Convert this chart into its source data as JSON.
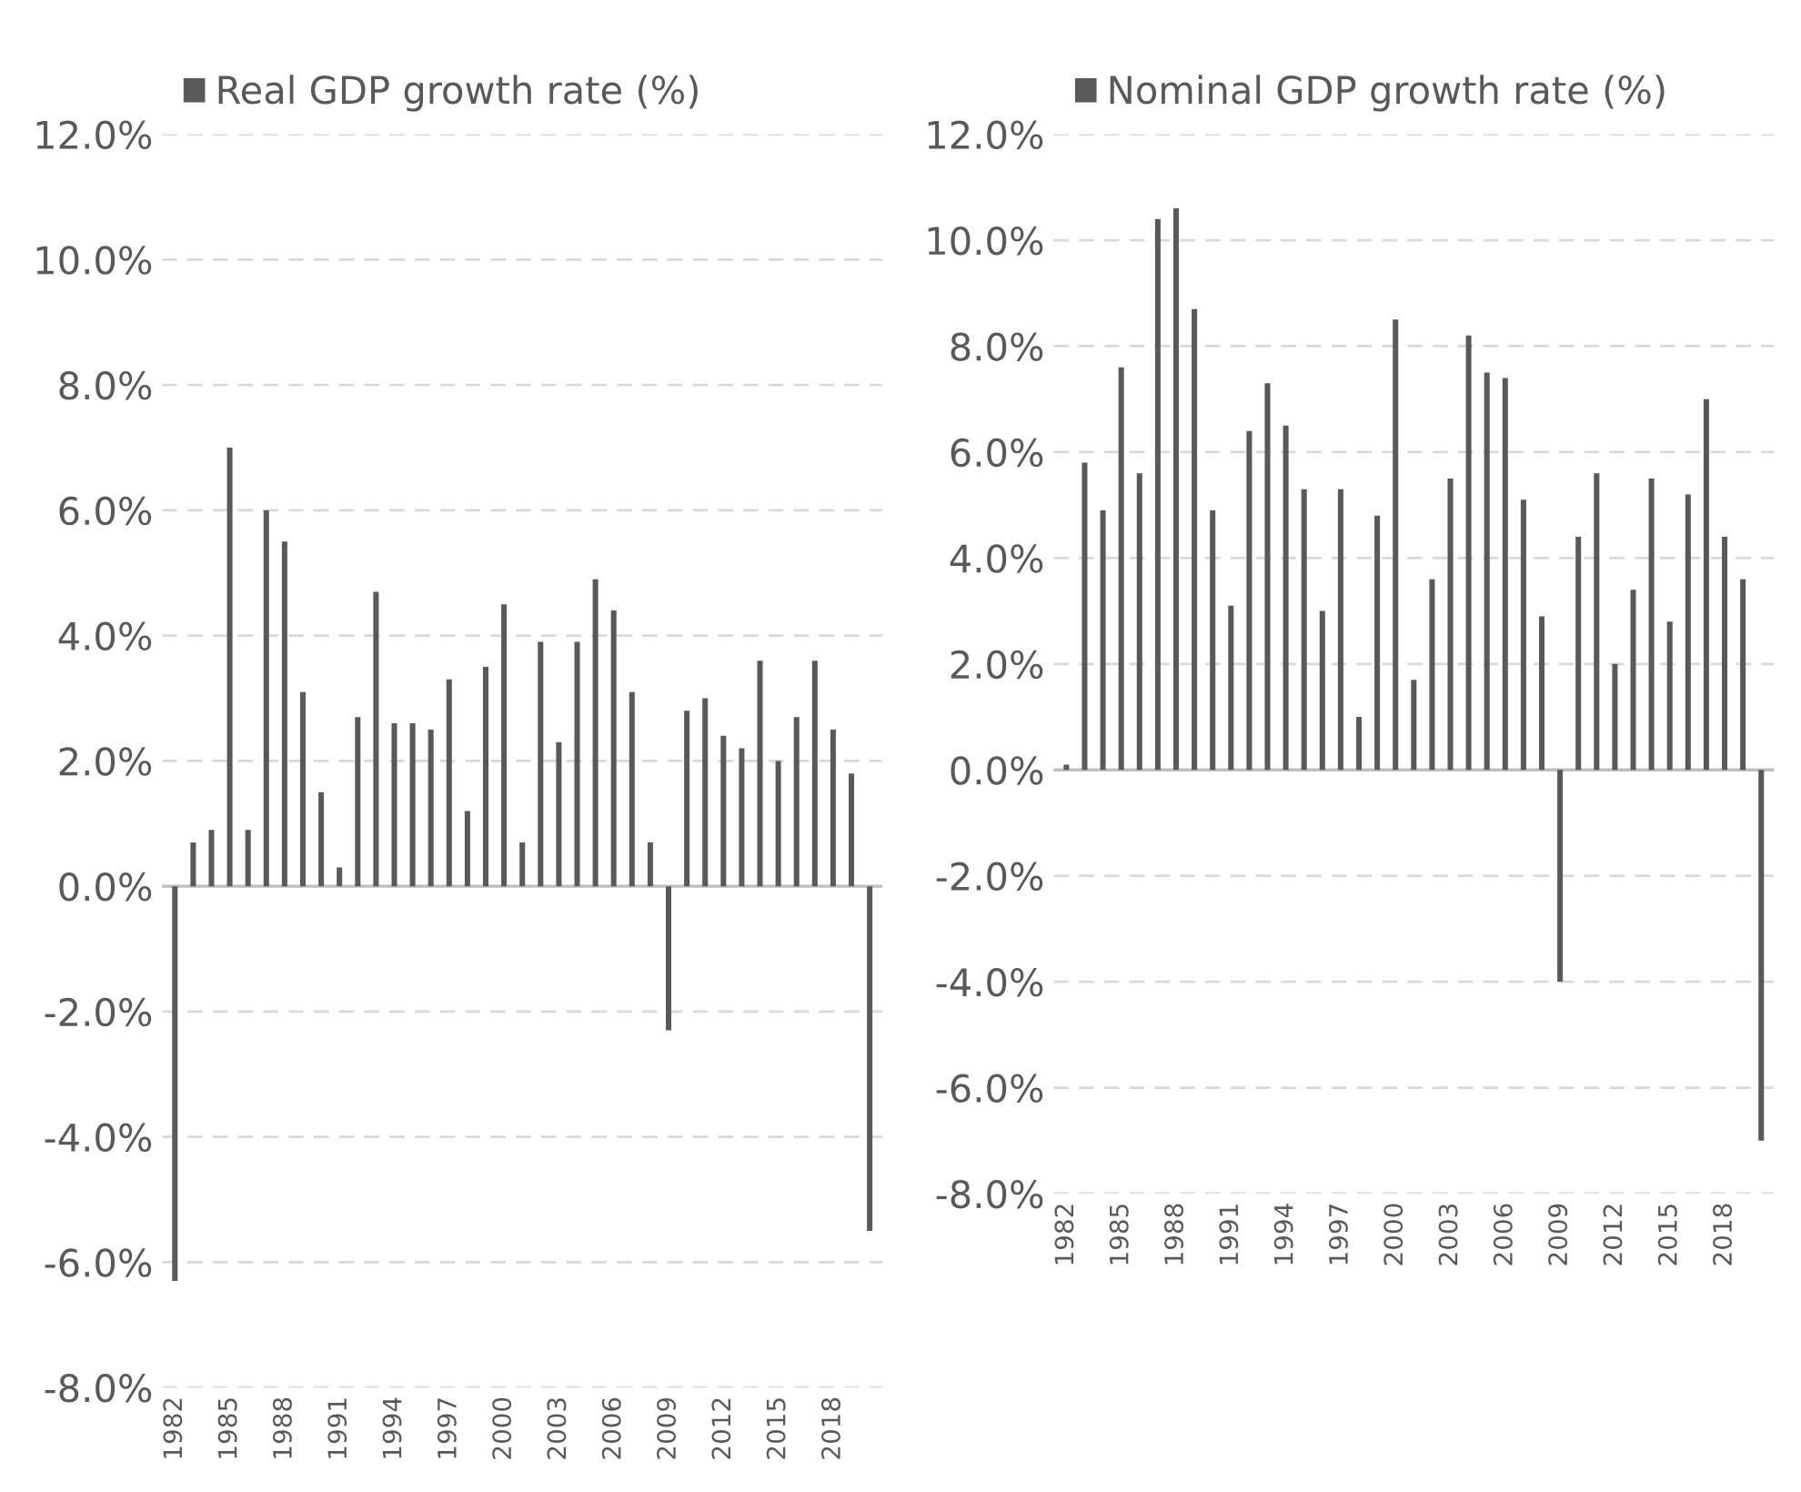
{
  "chart_data": [
    {
      "type": "bar",
      "categories": [
        "1982",
        null,
        null,
        "1985",
        null,
        null,
        "1988",
        null,
        null,
        "1991",
        null,
        null,
        "1994",
        null,
        null,
        "1997",
        null,
        null,
        "2000",
        null,
        null,
        "2003",
        null,
        null,
        "2006",
        null,
        null,
        "2009",
        null,
        null,
        "2012",
        null,
        null,
        "2015",
        null,
        null,
        "2018",
        null,
        null
      ],
      "series": [
        {
          "name": "Real GDP growth rate (%)",
          "color": "#595959",
          "values": [
            -6.3,
            0.7,
            0.9,
            7.0,
            0.9,
            6.0,
            5.5,
            3.1,
            1.5,
            0.3,
            2.7,
            4.7,
            2.6,
            2.6,
            2.5,
            3.3,
            1.2,
            3.5,
            4.5,
            0.7,
            3.9,
            2.3,
            3.9,
            4.9,
            4.4,
            3.1,
            0.7,
            -2.3,
            2.8,
            3.0,
            2.4,
            2.2,
            3.6,
            2.0,
            2.7,
            3.6,
            2.5,
            1.8,
            -5.5
          ]
        }
      ],
      "ylim": [
        -8,
        12
      ],
      "yticks": [
        {
          "value": 12,
          "label": "12.0%"
        },
        {
          "value": 10,
          "label": "10.0%"
        },
        {
          "value": 8,
          "label": "8.0%"
        },
        {
          "value": 6,
          "label": "6.0%"
        },
        {
          "value": 4,
          "label": "4.0%"
        },
        {
          "value": 2,
          "label": "2.0%"
        },
        {
          "value": 0,
          "label": "0.0%"
        },
        {
          "value": -2,
          "label": "-2.0%"
        },
        {
          "value": -4,
          "label": "-4.0%"
        },
        {
          "value": -6,
          "label": "-6.0%"
        },
        {
          "value": -8,
          "label": "-8.0%"
        }
      ],
      "grid": "y",
      "legend": "top"
    },
    {
      "type": "bar",
      "categories": [
        "1982",
        null,
        null,
        "1985",
        null,
        null,
        "1988",
        null,
        null,
        "1991",
        null,
        null,
        "1994",
        null,
        null,
        "1997",
        null,
        null,
        "2000",
        null,
        null,
        "2003",
        null,
        null,
        "2006",
        null,
        null,
        "2009",
        null,
        null,
        "2012",
        null,
        null,
        "2015",
        null,
        null,
        "2018",
        null,
        null
      ],
      "series": [
        {
          "name": "Nominal GDP growth rate (%)",
          "color": "#595959",
          "values": [
            0.1,
            5.8,
            4.9,
            7.6,
            5.6,
            10.4,
            10.6,
            8.7,
            4.9,
            3.1,
            6.4,
            7.3,
            6.5,
            5.3,
            3.0,
            5.3,
            1.0,
            4.8,
            8.5,
            1.7,
            3.6,
            5.5,
            8.2,
            7.5,
            7.4,
            5.1,
            2.9,
            -4.0,
            4.4,
            5.6,
            2.0,
            3.4,
            5.5,
            2.8,
            5.2,
            7.0,
            4.4,
            3.6,
            -7.0
          ]
        }
      ],
      "ylim": [
        -8,
        12
      ],
      "yticks": [
        {
          "value": 12,
          "label": "12.0%"
        },
        {
          "value": 10,
          "label": "10.0%"
        },
        {
          "value": 8,
          "label": "8.0%"
        },
        {
          "value": 6,
          "label": "6.0%"
        },
        {
          "value": 4,
          "label": "4.0%"
        },
        {
          "value": 2,
          "label": "2.0%"
        },
        {
          "value": 0,
          "label": "0.0%"
        },
        {
          "value": -2,
          "label": "-2.0%"
        },
        {
          "value": -4,
          "label": "-4.0%"
        },
        {
          "value": -6,
          "label": "-6.0%"
        },
        {
          "value": -8,
          "label": "-8.0%"
        }
      ],
      "grid": "y",
      "legend": "top"
    }
  ]
}
